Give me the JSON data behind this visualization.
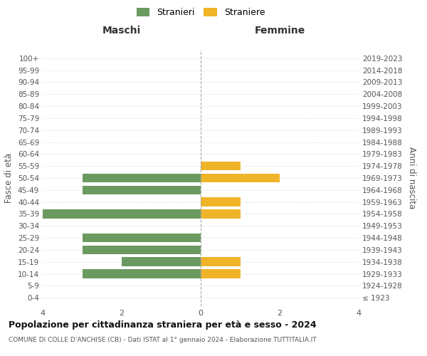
{
  "age_groups": [
    "100+",
    "95-99",
    "90-94",
    "85-89",
    "80-84",
    "75-79",
    "70-74",
    "65-69",
    "60-64",
    "55-59",
    "50-54",
    "45-49",
    "40-44",
    "35-39",
    "30-34",
    "25-29",
    "20-24",
    "15-19",
    "10-14",
    "5-9",
    "0-4"
  ],
  "birth_years": [
    "≤ 1923",
    "1924-1928",
    "1929-1933",
    "1934-1938",
    "1939-1943",
    "1944-1948",
    "1949-1953",
    "1954-1958",
    "1959-1963",
    "1964-1968",
    "1969-1973",
    "1974-1978",
    "1979-1983",
    "1984-1988",
    "1989-1993",
    "1994-1998",
    "1999-2003",
    "2004-2008",
    "2009-2013",
    "2014-2018",
    "2019-2023"
  ],
  "maschi": [
    0,
    0,
    0,
    0,
    0,
    0,
    0,
    0,
    0,
    0,
    3,
    3,
    0,
    4,
    0,
    3,
    3,
    2,
    3,
    0,
    0
  ],
  "femmine": [
    0,
    0,
    0,
    0,
    0,
    0,
    0,
    0,
    0,
    1,
    2,
    0,
    1,
    1,
    0,
    0,
    0,
    1,
    1,
    0,
    0
  ],
  "maschi_color": "#6a9a5f",
  "femmine_color": "#f0b429",
  "title": "Popolazione per cittadinanza straniera per età e sesso - 2024",
  "subtitle": "COMUNE DI COLLE D’ANCHISE (CB) - Dati ISTAT al 1° gennaio 2024 - Elaborazione TUTTITALIA.IT",
  "ylabel_left": "Fasce di età",
  "ylabel_right": "Anni di nascita",
  "xlabel_left": "Maschi",
  "xlabel_right": "Femmine",
  "legend_stranieri": "Stranieri",
  "legend_straniere": "Straniere",
  "xlim": 4,
  "bg_color": "#ffffff",
  "grid_color": "#d0d0d0",
  "bar_height": 0.75
}
